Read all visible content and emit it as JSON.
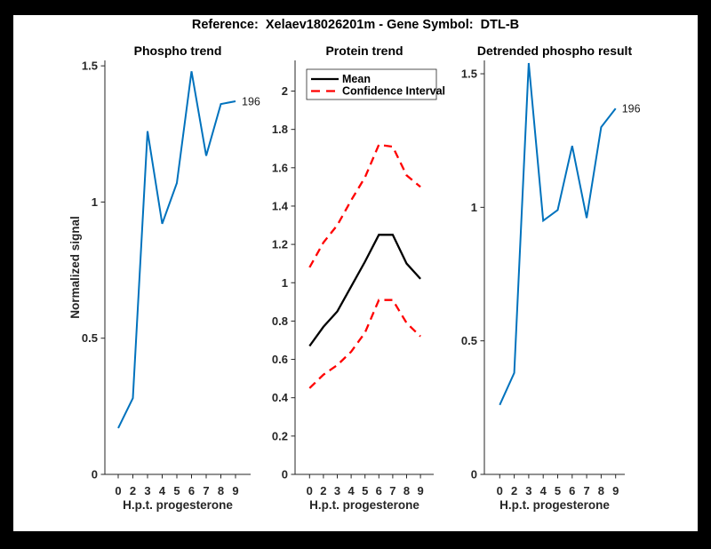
{
  "window": {
    "title": "Reference:  Xelaev18026201m - Gene Symbol:  DTL-B",
    "frame_color": "#000000",
    "canvas_color": "#ffffff"
  },
  "colors": {
    "blue": "#0072BD",
    "red": "#FF0000",
    "black": "#000000",
    "axis": "#262626"
  },
  "chart_data": [
    {
      "type": "line",
      "title": "Phospho trend",
      "xlabel": "H.p.t. progesterone",
      "ylabel": "Normalized signal",
      "x": [
        0,
        2,
        3,
        4,
        5,
        6,
        7,
        8,
        9
      ],
      "x_tick_labels": [
        "0",
        "2",
        "3",
        "4",
        "5",
        "6",
        "7",
        "8",
        "9"
      ],
      "x_spacing": "categorical",
      "ylim": [
        0,
        1.52
      ],
      "y_ticks": [
        0,
        0.5,
        1,
        1.5
      ],
      "y_tick_labels": [
        "0",
        "0.5",
        "1",
        "1.5"
      ],
      "grid": false,
      "legend": null,
      "end_label": "196",
      "series": [
        {
          "name": "phospho-signal",
          "color_key": "blue",
          "dash": false,
          "width": 2,
          "values": [
            0.17,
            0.28,
            1.26,
            0.92,
            1.07,
            1.48,
            1.17,
            1.36,
            1.37
          ]
        }
      ]
    },
    {
      "type": "line",
      "title": "Protein trend",
      "xlabel": "H.p.t. progesterone",
      "ylabel": "",
      "x": [
        0,
        2,
        3,
        4,
        5,
        6,
        7,
        8,
        9
      ],
      "x_tick_labels": [
        "0",
        "2",
        "3",
        "4",
        "5",
        "6",
        "7",
        "8",
        "9"
      ],
      "x_spacing": "categorical",
      "ylim": [
        0,
        2.16
      ],
      "y_ticks": [
        0,
        0.2,
        0.4,
        0.6,
        0.8,
        1,
        1.2,
        1.4,
        1.6,
        1.8,
        2
      ],
      "y_tick_labels": [
        "0",
        "0.2",
        "0.4",
        "0.6",
        "0.8",
        "1",
        "1.2",
        "1.4",
        "1.6",
        "1.8",
        "2"
      ],
      "grid": false,
      "legend": {
        "position": "northwest",
        "entries": [
          {
            "label": "Mean",
            "color_key": "black",
            "dash": false
          },
          {
            "label": "Confidence Interval",
            "color_key": "red",
            "dash": true
          }
        ]
      },
      "end_label": null,
      "series": [
        {
          "name": "mean",
          "color_key": "black",
          "dash": false,
          "width": 2.3,
          "values": [
            0.67,
            0.77,
            0.85,
            0.98,
            1.11,
            1.25,
            1.25,
            1.1,
            1.02
          ]
        },
        {
          "name": "ci-upper",
          "color_key": "red",
          "dash": true,
          "width": 2.3,
          "values": [
            1.08,
            1.21,
            1.3,
            1.43,
            1.55,
            1.72,
            1.71,
            1.56,
            1.5
          ]
        },
        {
          "name": "ci-lower",
          "color_key": "red",
          "dash": true,
          "width": 2.3,
          "values": [
            0.45,
            0.52,
            0.57,
            0.64,
            0.74,
            0.91,
            0.91,
            0.79,
            0.72
          ]
        }
      ]
    },
    {
      "type": "line",
      "title": "Detrended phospho result",
      "xlabel": "H.p.t. progesterone",
      "ylabel": "",
      "x": [
        0,
        2,
        3,
        4,
        5,
        6,
        7,
        8,
        9
      ],
      "x_tick_labels": [
        "0",
        "2",
        "3",
        "4",
        "5",
        "6",
        "7",
        "8",
        "9"
      ],
      "x_spacing": "categorical",
      "ylim": [
        0,
        1.55
      ],
      "y_ticks": [
        0,
        0.5,
        1,
        1.5
      ],
      "y_tick_labels": [
        "0",
        "0.5",
        "1",
        "1.5"
      ],
      "grid": false,
      "legend": null,
      "end_label": "196",
      "series": [
        {
          "name": "detrended-phospho",
          "color_key": "blue",
          "dash": false,
          "width": 2,
          "values": [
            0.26,
            0.38,
            1.54,
            0.95,
            0.99,
            1.23,
            0.96,
            1.3,
            1.37
          ]
        }
      ]
    }
  ]
}
